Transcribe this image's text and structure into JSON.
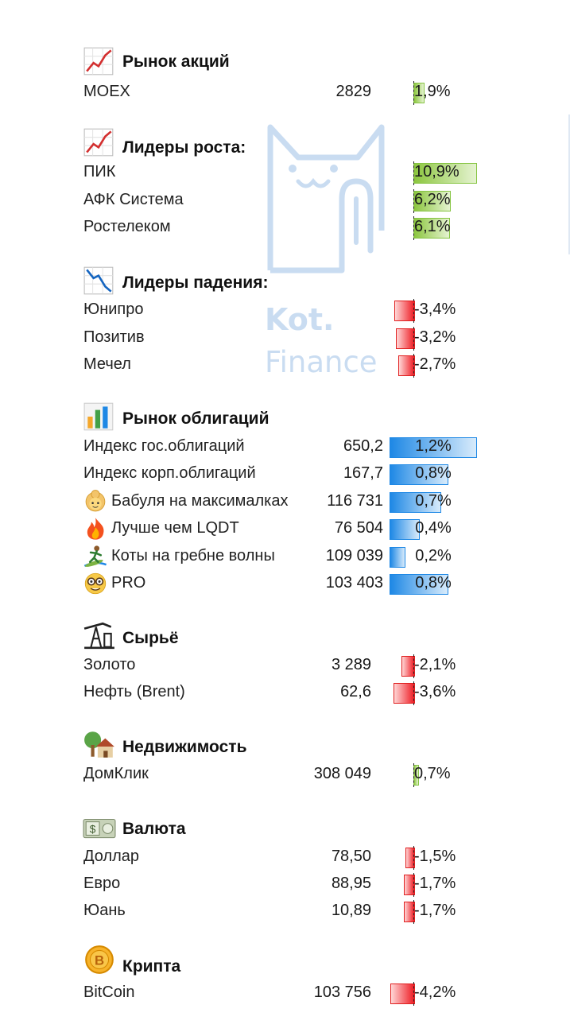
{
  "sections": [
    {
      "id": "stocks",
      "title": "Рынок акций",
      "icon": "chart-increasing-icon",
      "rows": [
        {
          "label": "MOEX",
          "value": "2829",
          "pct": "1,9%",
          "change": 1.9
        }
      ]
    },
    {
      "id": "gainers",
      "title": "Лидеры роста:",
      "icon": "chart-increasing-icon",
      "rows": [
        {
          "label": "ПИК",
          "pct": "10,9%",
          "change": 10.9
        },
        {
          "label": "АФК Система",
          "pct": "6,2%",
          "change": 6.2
        },
        {
          "label": "Ростелеком",
          "pct": "6,1%",
          "change": 6.1
        }
      ]
    },
    {
      "id": "losers",
      "title": "Лидеры падения:",
      "icon": "chart-decreasing-icon",
      "rows": [
        {
          "label": "Юнипро",
          "pct": "-3,4%",
          "change": -3.4
        },
        {
          "label": "Позитив",
          "pct": "-3,2%",
          "change": -3.2
        },
        {
          "label": "Мечел",
          "pct": "-2,7%",
          "change": -2.7
        }
      ]
    },
    {
      "id": "bonds",
      "title": "Рынок облигаций",
      "icon": "bar-chart-icon",
      "rows": [
        {
          "label": "Индекс гос.облигаций",
          "value": "650,2",
          "pct": "1,2%",
          "change": 1.2
        },
        {
          "label": "Индекс корп.облигаций",
          "value": "167,7",
          "pct": "0,8%",
          "change": 0.8
        },
        {
          "label": "Бабуля на максималках",
          "value": "116 731",
          "pct": "0,7%",
          "change": 0.7,
          "icon": "old-woman-emoji-icon"
        },
        {
          "label": "Лучше чем LQDT",
          "value": "76 504",
          "pct": "0,4%",
          "change": 0.4,
          "icon": "fire-emoji-icon"
        },
        {
          "label": "Коты на гребне волны",
          "value": "109 039",
          "pct": "0,2%",
          "change": 0.2,
          "icon": "surfer-emoji-icon"
        },
        {
          "label": "PRO",
          "value": "103 403",
          "pct": "0,8%",
          "change": 0.8,
          "icon": "nerd-face-emoji-icon"
        }
      ]
    },
    {
      "id": "commodities",
      "title": "Сырьё",
      "icon": "oil-derrick-icon",
      "rows": [
        {
          "label": "Золото",
          "value": "3 289",
          "pct": "-2,1%",
          "change": -2.1
        },
        {
          "label": "Нефть (Brent)",
          "value": "62,6",
          "pct": "-3,6%",
          "change": -3.6
        }
      ]
    },
    {
      "id": "realestate",
      "title": "Недвижимость",
      "icon": "house-with-garden-icon",
      "rows": [
        {
          "label": "ДомКлик",
          "value": "308 049",
          "pct": "0,7%",
          "change": 0.7
        }
      ]
    },
    {
      "id": "currency",
      "title": "Валюта",
      "icon": "dollar-banknote-icon",
      "rows": [
        {
          "label": "Доллар",
          "value": "78,50",
          "pct": "-1,5%",
          "change": -1.5
        },
        {
          "label": "Евро",
          "value": "88,95",
          "pct": "-1,7%",
          "change": -1.7
        },
        {
          "label": "Юань",
          "value": "10,89",
          "pct": "-1,7%",
          "change": -1.7
        }
      ]
    },
    {
      "id": "crypto",
      "title": "Крипта",
      "icon": "bitcoin-coin-icon",
      "rows": [
        {
          "label": "BitCoin",
          "value": "103 756",
          "pct": "-4,2%",
          "change": -4.2
        }
      ]
    }
  ],
  "watermark": {
    "line1": "Kot.",
    "line2": "Finance"
  },
  "colors": {
    "positive": "#8cc63f",
    "negative": "#ee1c24",
    "bond": "#1e88e5",
    "watermark": "#c9dcf1"
  }
}
